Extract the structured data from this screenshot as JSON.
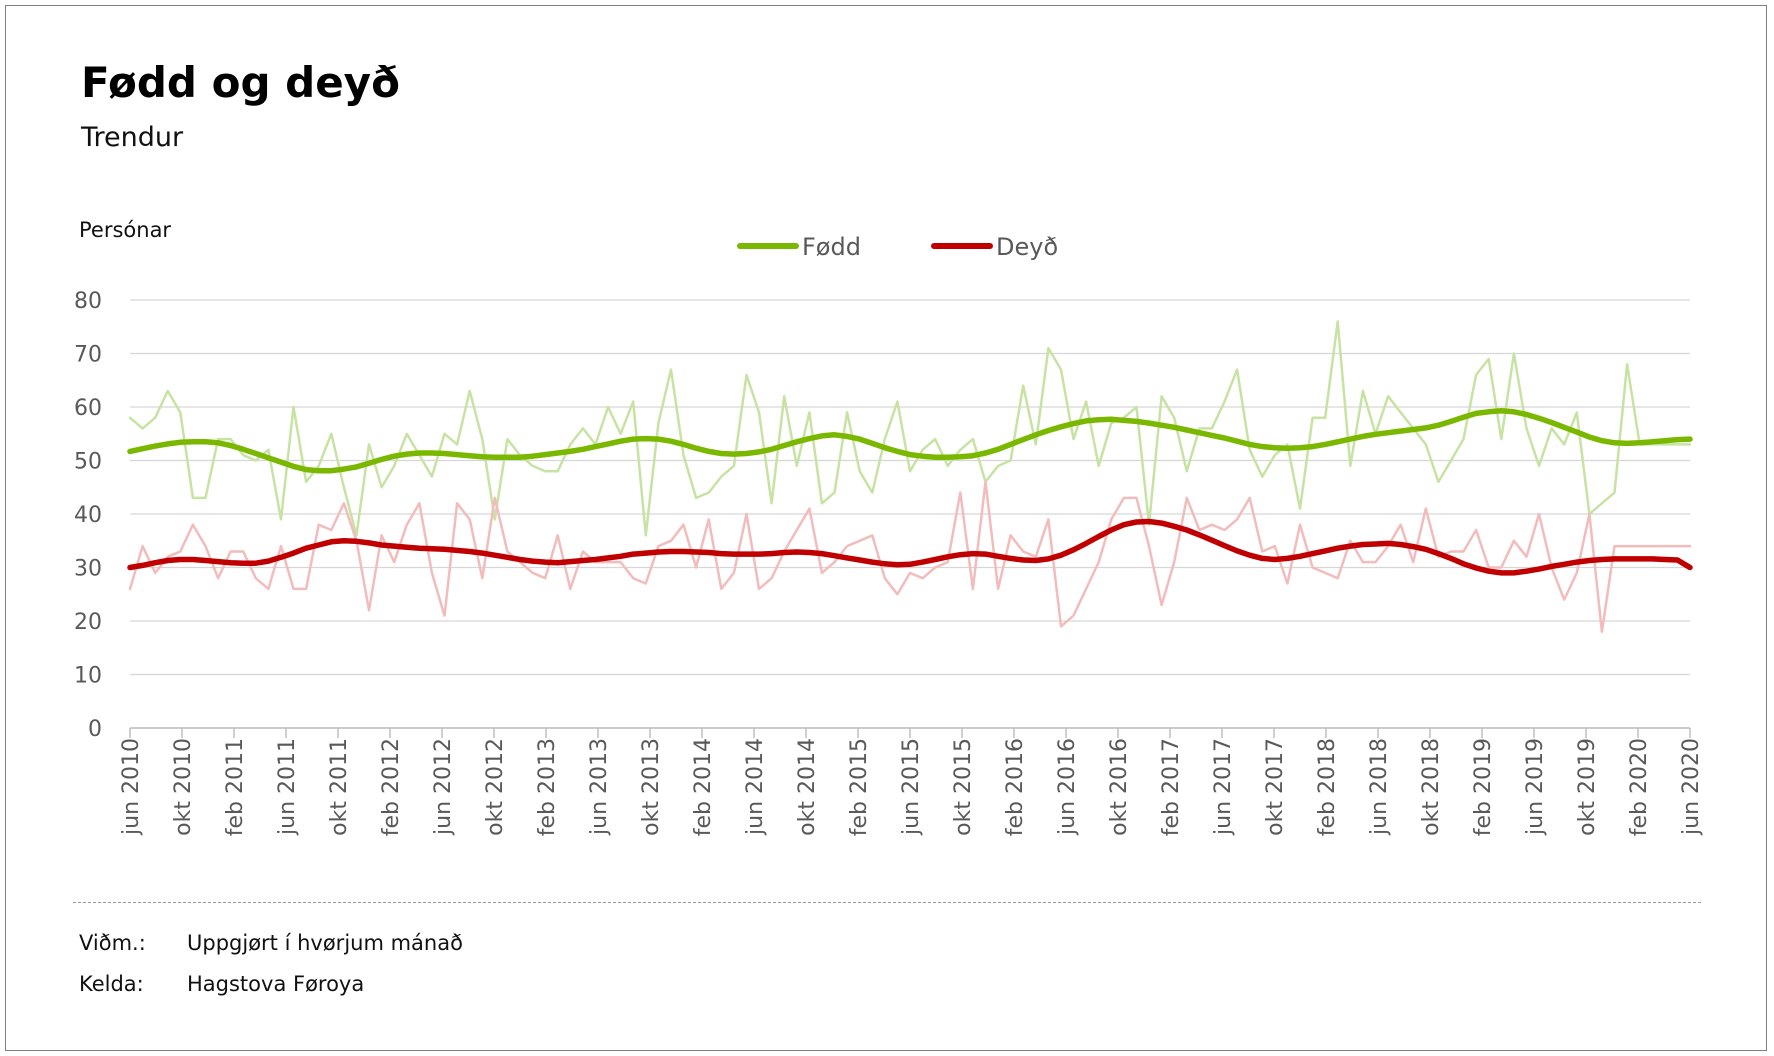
{
  "header": {
    "title": "Fødd og deyð",
    "subtitle": "Trendur"
  },
  "footer": {
    "note_label": "Viðm.:",
    "note_value": "Uppgjørt í hvørjum mánað",
    "source_label": "Kelda:",
    "source_value": "Hagstova Føroya"
  },
  "colors": {
    "fodd": "#7ab800",
    "fodd_raw": "#c7e3a3",
    "deyd": "#c00000",
    "deyd_raw": "#f2bcbc",
    "grid": "#d6d6d6",
    "axis_text": "#595959"
  },
  "chart_data": {
    "type": "line",
    "ylabel": "Persónar",
    "ylim": [
      0,
      80
    ],
    "yticks": [
      0,
      10,
      20,
      30,
      40,
      50,
      60,
      70,
      80
    ],
    "grid": true,
    "legend_position": "top-center",
    "x_labels": [
      "jun 2010",
      "okt 2010",
      "feb 2011",
      "jun 2011",
      "okt 2011",
      "feb 2012",
      "jun 2012",
      "okt 2012",
      "feb 2013",
      "jun 2013",
      "okt 2013",
      "feb 2014",
      "jun 2014",
      "okt 2014",
      "feb 2015",
      "jun 2015",
      "okt 2015",
      "feb 2016",
      "jun 2016",
      "okt 2016",
      "feb 2017",
      "jun 2017",
      "okt 2017",
      "feb 2018",
      "jun 2018",
      "okt 2018",
      "feb 2019",
      "jun 2019",
      "okt 2019",
      "feb 2020",
      "jun 2020"
    ],
    "x_start": "jun 2010",
    "x_end": "jun 2020",
    "series": [
      {
        "name": "Fødd",
        "role": "trend",
        "values": [
          51.7,
          52.2,
          52.7,
          53.1,
          53.4,
          53.5,
          53.5,
          53.3,
          52.8,
          52.1,
          51.3,
          50.5,
          49.7,
          48.9,
          48.3,
          48.1,
          48.1,
          48.4,
          48.8,
          49.5,
          50.2,
          50.8,
          51.2,
          51.4,
          51.4,
          51.3,
          51.1,
          50.9,
          50.7,
          50.6,
          50.6,
          50.6,
          50.8,
          51.1,
          51.4,
          51.7,
          52.1,
          52.6,
          53.1,
          53.6,
          54.0,
          54.1,
          54.0,
          53.6,
          53.0,
          52.3,
          51.7,
          51.3,
          51.2,
          51.3,
          51.6,
          52.1,
          52.8,
          53.5,
          54.1,
          54.6,
          54.8,
          54.5,
          54.0,
          53.2,
          52.4,
          51.7,
          51.1,
          50.8,
          50.6,
          50.6,
          50.7,
          50.9,
          51.4,
          52.1,
          53.0,
          53.9,
          54.8,
          55.6,
          56.3,
          56.9,
          57.4,
          57.6,
          57.7,
          57.5,
          57.3,
          57.0,
          56.6,
          56.2,
          55.7,
          55.2,
          54.7,
          54.2,
          53.6,
          53.0,
          52.6,
          52.4,
          52.3,
          52.4,
          52.6,
          53.0,
          53.5,
          54.0,
          54.5,
          54.9,
          55.2,
          55.5,
          55.8,
          56.1,
          56.6,
          57.3,
          58.1,
          58.8,
          59.1,
          59.3,
          59.1,
          58.6,
          57.9,
          57.1,
          56.2,
          55.3,
          54.4,
          53.7,
          53.3,
          53.2,
          53.3,
          53.5,
          53.7,
          53.9,
          54.0
        ]
      },
      {
        "name": "Deyð",
        "role": "trend",
        "values": [
          30.0,
          30.4,
          30.9,
          31.3,
          31.5,
          31.5,
          31.3,
          31.1,
          30.9,
          30.8,
          30.8,
          31.2,
          31.9,
          32.7,
          33.6,
          34.2,
          34.8,
          35.0,
          34.9,
          34.6,
          34.2,
          34.0,
          33.8,
          33.6,
          33.5,
          33.4,
          33.2,
          33.0,
          32.7,
          32.3,
          31.9,
          31.5,
          31.2,
          31.0,
          30.9,
          31.1,
          31.3,
          31.5,
          31.8,
          32.1,
          32.5,
          32.7,
          32.9,
          33.0,
          33.0,
          32.9,
          32.8,
          32.6,
          32.5,
          32.5,
          32.5,
          32.6,
          32.8,
          32.9,
          32.8,
          32.6,
          32.2,
          31.8,
          31.4,
          31.0,
          30.7,
          30.5,
          30.6,
          31.0,
          31.5,
          32.0,
          32.4,
          32.6,
          32.5,
          32.1,
          31.7,
          31.4,
          31.3,
          31.6,
          32.3,
          33.3,
          34.5,
          35.8,
          37.0,
          38.0,
          38.5,
          38.6,
          38.3,
          37.7,
          37.0,
          36.1,
          35.1,
          34.1,
          33.1,
          32.3,
          31.7,
          31.5,
          31.7,
          32.1,
          32.6,
          33.1,
          33.6,
          34.0,
          34.3,
          34.4,
          34.5,
          34.3,
          33.9,
          33.4,
          32.6,
          31.7,
          30.7,
          29.9,
          29.3,
          29.0,
          29.0,
          29.3,
          29.7,
          30.2,
          30.6,
          31.0,
          31.3,
          31.5,
          31.6,
          31.6,
          31.6,
          31.6,
          31.5,
          31.4,
          30.0
        ]
      },
      {
        "name": "Fødd",
        "role": "monthly",
        "values": [
          58,
          56,
          58,
          63,
          59,
          43,
          43,
          54,
          54,
          51,
          50,
          52,
          39,
          60,
          46,
          49,
          55,
          45,
          36,
          53,
          45,
          49,
          55,
          51,
          47,
          55,
          53,
          63,
          54,
          39,
          54,
          51,
          49,
          48,
          48,
          53,
          56,
          53,
          60,
          55,
          61,
          36,
          57,
          67,
          51,
          43,
          44,
          47,
          49,
          66,
          59,
          42,
          62,
          49,
          59,
          42,
          44,
          59,
          48,
          44,
          54,
          61,
          48,
          52,
          54,
          49,
          52,
          54,
          46,
          49,
          50,
          64,
          53,
          71,
          67,
          54,
          61,
          49,
          57,
          58,
          60,
          38,
          62,
          58,
          48,
          56,
          56,
          61,
          67,
          52,
          47,
          51,
          53,
          41,
          58,
          58,
          76,
          49,
          63,
          55,
          62,
          59,
          56,
          53,
          46,
          50,
          54,
          66,
          69,
          54,
          70,
          56,
          49,
          56,
          53,
          59,
          40,
          42,
          44,
          68,
          53,
          53,
          53,
          53,
          53
        ]
      },
      {
        "name": "Deyð",
        "role": "monthly",
        "values": [
          26,
          34,
          29,
          32,
          33,
          38,
          34,
          28,
          33,
          33,
          28,
          26,
          34,
          26,
          26,
          38,
          37,
          42,
          35,
          22,
          36,
          31,
          38,
          42,
          29,
          21,
          42,
          39,
          28,
          43,
          33,
          31,
          29,
          28,
          36,
          26,
          33,
          31,
          31,
          31,
          28,
          27,
          34,
          35,
          38,
          30,
          39,
          26,
          29,
          40,
          26,
          28,
          33,
          37,
          41,
          29,
          31,
          34,
          35,
          36,
          28,
          25,
          29,
          28,
          30,
          31,
          44,
          26,
          46,
          26,
          36,
          33,
          32,
          39,
          19,
          21,
          26,
          31,
          39,
          43,
          43,
          34,
          23,
          31,
          43,
          37,
          38,
          37,
          39,
          43,
          33,
          34,
          27,
          38,
          30,
          29,
          28,
          35,
          31,
          31,
          34,
          38,
          31,
          41,
          32,
          33,
          33,
          37,
          30,
          30,
          35,
          32,
          40,
          30,
          24,
          29,
          40,
          18,
          34,
          34,
          34,
          34,
          34,
          34,
          34
        ]
      }
    ]
  }
}
